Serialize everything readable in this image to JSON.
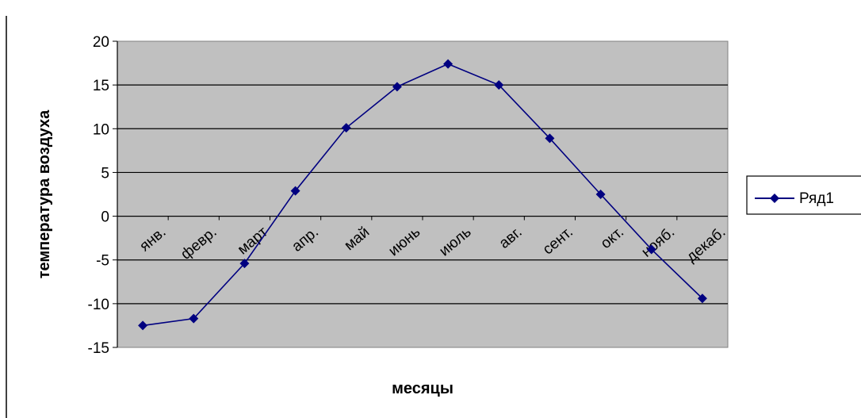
{
  "chart_data": {
    "type": "line",
    "categories": [
      "янв.",
      "февр.",
      "март",
      "апр.",
      "май",
      "июнь",
      "июль",
      "авг.",
      "сент.",
      "окт.",
      "нояб.",
      "декаб."
    ],
    "series": [
      {
        "name": "Ряд1",
        "values": [
          -12.5,
          -11.7,
          -5.4,
          2.9,
          10.1,
          14.8,
          17.4,
          15.0,
          8.9,
          2.5,
          -3.8,
          -9.4
        ],
        "color": "#000080"
      }
    ],
    "title": "",
    "xlabel": "месяцы",
    "ylabel": "температура воздуха",
    "ylim": [
      -15,
      20
    ],
    "yticks": [
      20,
      15,
      10,
      5,
      0,
      -5,
      -10,
      -15
    ],
    "grid": true,
    "plot_background": "#c0c0c0",
    "legend_position": "right"
  }
}
